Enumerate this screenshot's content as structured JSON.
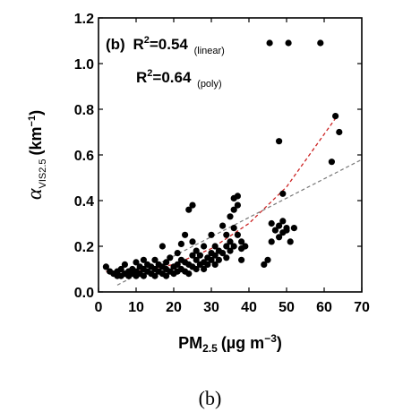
{
  "caption": "(b)",
  "chart_data": {
    "type": "scatter",
    "xlabel_main": "PM",
    "xlabel_sub": "2.5",
    "xlabel_unit": "(µg m",
    "xlabel_exp": "−3",
    "xlabel_close": ")",
    "ylabel_main": "α",
    "ylabel_sub": "VIS2.5",
    "ylabel_unit": "(km",
    "ylabel_exp": "−1",
    "ylabel_close": ")",
    "xlim": [
      0,
      70
    ],
    "ylim": [
      0.0,
      1.2
    ],
    "xticks": [
      "0",
      "10",
      "20",
      "30",
      "40",
      "50",
      "60",
      "70"
    ],
    "yticks": [
      "0.0",
      "0.2",
      "0.4",
      "0.6",
      "0.8",
      "1.0",
      "1.2"
    ],
    "annotation": {
      "panel": "(b)",
      "r2_linear_prefix": "R",
      "r2_linear_exp": "2",
      "r2_linear_value": "=0.54",
      "r2_linear_label": "(linear)",
      "r2_poly_prefix": "R",
      "r2_poly_exp": "2",
      "r2_poly_value": "=0.64",
      "r2_poly_label": "(poly)"
    },
    "fits": {
      "poly": {
        "color": "#cc2222",
        "x": [
          2,
          10,
          20,
          30,
          40,
          50,
          63
        ],
        "y": [
          0.09,
          0.09,
          0.12,
          0.19,
          0.3,
          0.46,
          0.76
        ]
      },
      "linear": {
        "color": "#777777",
        "x": [
          5,
          70
        ],
        "y": [
          0.03,
          0.58
        ]
      }
    },
    "series": [
      {
        "points": [
          [
            2,
            0.11
          ],
          [
            3,
            0.09
          ],
          [
            4,
            0.08
          ],
          [
            5,
            0.07
          ],
          [
            5,
            0.09
          ],
          [
            6,
            0.1
          ],
          [
            6,
            0.07
          ],
          [
            7,
            0.08
          ],
          [
            7,
            0.12
          ],
          [
            8,
            0.09
          ],
          [
            8,
            0.07
          ],
          [
            9,
            0.1
          ],
          [
            9,
            0.08
          ],
          [
            10,
            0.09
          ],
          [
            10,
            0.13
          ],
          [
            10,
            0.07
          ],
          [
            11,
            0.11
          ],
          [
            11,
            0.08
          ],
          [
            12,
            0.1
          ],
          [
            12,
            0.07
          ],
          [
            12,
            0.14
          ],
          [
            13,
            0.09
          ],
          [
            13,
            0.12
          ],
          [
            14,
            0.08
          ],
          [
            14,
            0.11
          ],
          [
            15,
            0.1
          ],
          [
            15,
            0.07
          ],
          [
            15,
            0.14
          ],
          [
            16,
            0.09
          ],
          [
            16,
            0.12
          ],
          [
            17,
            0.08
          ],
          [
            17,
            0.11
          ],
          [
            17,
            0.2
          ],
          [
            18,
            0.1
          ],
          [
            18,
            0.13
          ],
          [
            18,
            0.07
          ],
          [
            19,
            0.09
          ],
          [
            19,
            0.15
          ],
          [
            20,
            0.11
          ],
          [
            20,
            0.08
          ],
          [
            21,
            0.12
          ],
          [
            21,
            0.17
          ],
          [
            21,
            0.09
          ],
          [
            22,
            0.1
          ],
          [
            22,
            0.14
          ],
          [
            22,
            0.21
          ],
          [
            23,
            0.09
          ],
          [
            23,
            0.25
          ],
          [
            23,
            0.13
          ],
          [
            24,
            0.12
          ],
          [
            24,
            0.36
          ],
          [
            24,
            0.08
          ],
          [
            25,
            0.38
          ],
          [
            25,
            0.11
          ],
          [
            25,
            0.16
          ],
          [
            25,
            0.22
          ],
          [
            26,
            0.14
          ],
          [
            26,
            0.1
          ],
          [
            26,
            0.18
          ],
          [
            27,
            0.12
          ],
          [
            27,
            0.16
          ],
          [
            28,
            0.13
          ],
          [
            28,
            0.1
          ],
          [
            28,
            0.2
          ],
          [
            29,
            0.15
          ],
          [
            29,
            0.12
          ],
          [
            30,
            0.14
          ],
          [
            30,
            0.17
          ],
          [
            30,
            0.25
          ],
          [
            31,
            0.16
          ],
          [
            31,
            0.12
          ],
          [
            31,
            0.2
          ],
          [
            32,
            0.18
          ],
          [
            32,
            0.14
          ],
          [
            33,
            0.17
          ],
          [
            33,
            0.29
          ],
          [
            34,
            0.2
          ],
          [
            34,
            0.15
          ],
          [
            34,
            0.25
          ],
          [
            35,
            0.22
          ],
          [
            35,
            0.33
          ],
          [
            35,
            0.18
          ],
          [
            36,
            0.28
          ],
          [
            36,
            0.36
          ],
          [
            36,
            0.41
          ],
          [
            36,
            0.2
          ],
          [
            37,
            0.25
          ],
          [
            37,
            0.38
          ],
          [
            37,
            0.42
          ],
          [
            38,
            0.19
          ],
          [
            38,
            0.14
          ],
          [
            38,
            0.22
          ],
          [
            39,
            0.2
          ],
          [
            44,
            0.12
          ],
          [
            45,
            0.14
          ],
          [
            46,
            0.3
          ],
          [
            46,
            0.22
          ],
          [
            47,
            0.27
          ],
          [
            48,
            0.24
          ],
          [
            48,
            0.29
          ],
          [
            48,
            0.66
          ],
          [
            49,
            0.26
          ],
          [
            49,
            0.31
          ],
          [
            49,
            0.43
          ],
          [
            50,
            0.28
          ],
          [
            50,
            0.27
          ],
          [
            51,
            0.22
          ],
          [
            52,
            0.28
          ],
          [
            62,
            0.57
          ],
          [
            63,
            0.77
          ],
          [
            64,
            0.7
          ],
          [
            45.5,
            1.09
          ],
          [
            50.5,
            1.09
          ],
          [
            59,
            1.09
          ]
        ]
      }
    ]
  }
}
